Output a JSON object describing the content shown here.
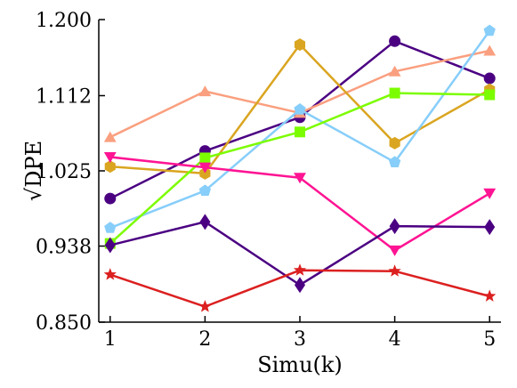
{
  "chart_data": {
    "type": "line",
    "title": "",
    "xlabel": "Simu(k)",
    "ylabel": "√DPE",
    "x": [
      1,
      2,
      3,
      4,
      5
    ],
    "xticks": [
      "1",
      "2",
      "3",
      "4",
      "5"
    ],
    "xlim": [
      0.88,
      5.12
    ],
    "ylim": [
      0.85,
      1.2
    ],
    "yticks": [
      "0.850",
      "0.938",
      "1.025",
      "1.112",
      "1.200"
    ],
    "grid": false,
    "legend": "none",
    "series": [
      {
        "color": "#4b0082",
        "marker": "circle",
        "values": [
          0.993,
          1.048,
          1.087,
          1.175,
          1.132
        ]
      },
      {
        "color": "#fa9f7f",
        "marker": "triangle-up",
        "values": [
          1.064,
          1.117,
          1.092,
          1.14,
          1.164
        ]
      },
      {
        "color": "#daa520",
        "marker": "hexagon",
        "values": [
          1.03,
          1.022,
          1.171,
          1.057,
          1.119
        ]
      },
      {
        "color": "#87cefa",
        "marker": "pentagon",
        "values": [
          0.959,
          1.002,
          1.096,
          1.035,
          1.187
        ]
      },
      {
        "color": "#7cfc00",
        "marker": "square",
        "values": [
          0.941,
          1.04,
          1.07,
          1.115,
          1.113
        ]
      },
      {
        "color": "#ff1493",
        "marker": "triangle-down",
        "values": [
          1.041,
          1.029,
          1.017,
          0.933,
          0.999
        ]
      },
      {
        "color": "#4b0082",
        "marker": "diamond",
        "values": [
          0.939,
          0.966,
          0.893,
          0.961,
          0.96
        ]
      },
      {
        "color": "#dc2020",
        "marker": "star",
        "values": [
          0.905,
          0.868,
          0.91,
          0.909,
          0.88
        ]
      }
    ]
  }
}
